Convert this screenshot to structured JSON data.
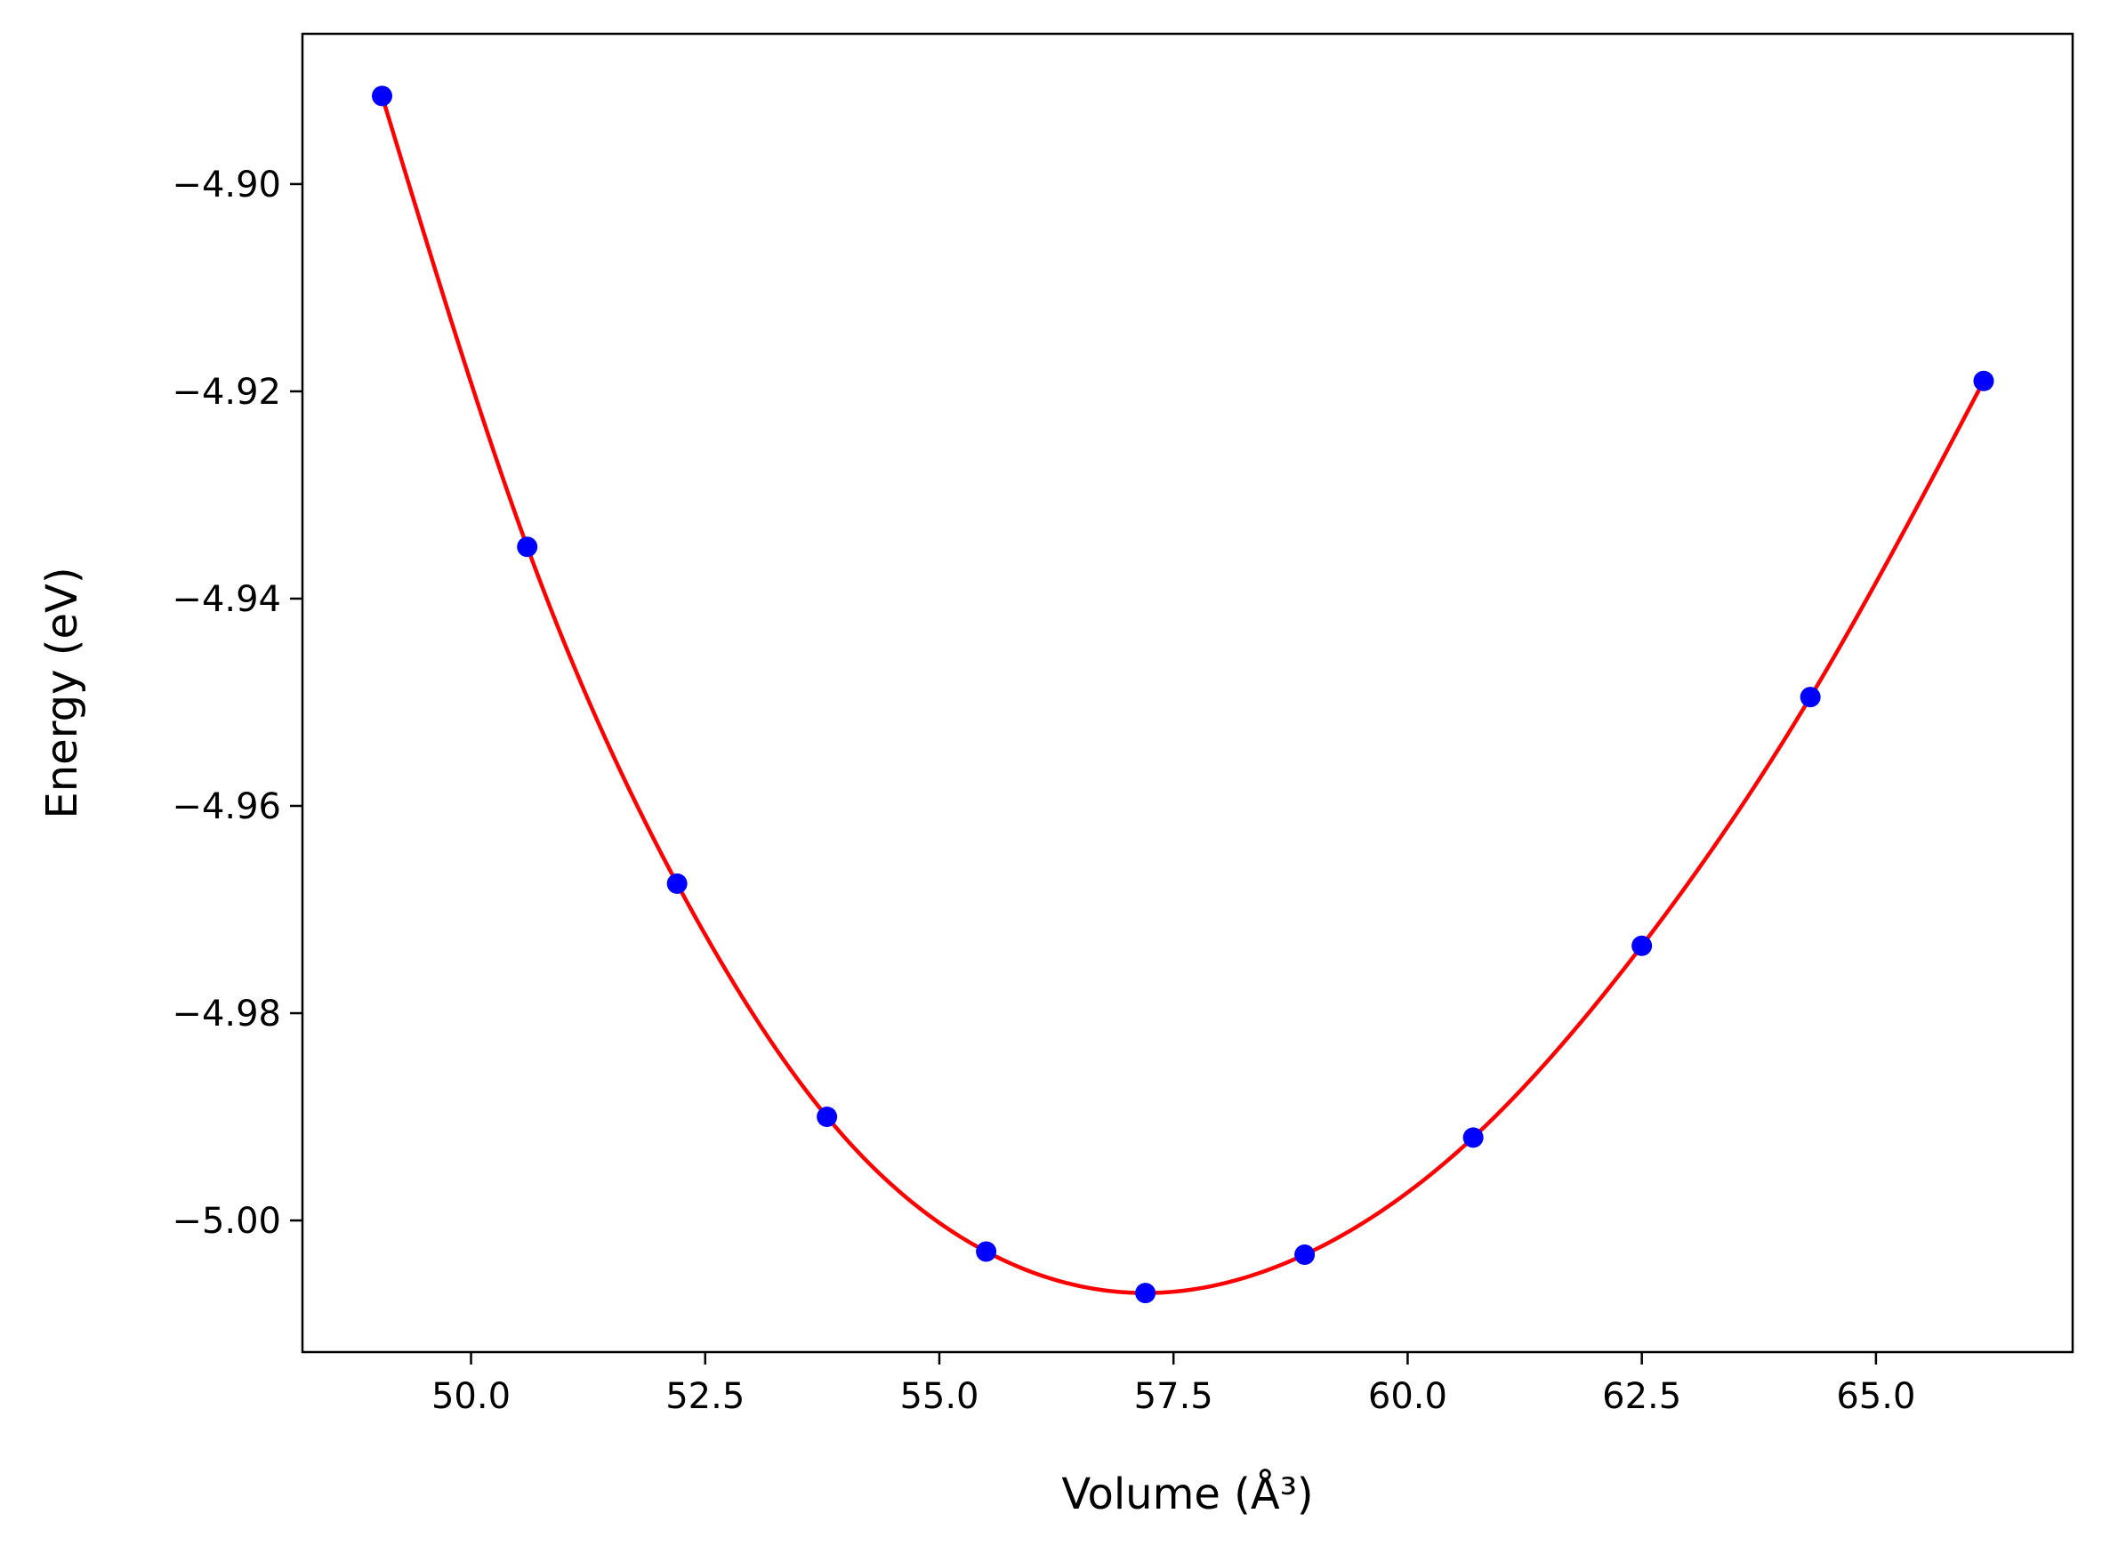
{
  "chart_data": {
    "type": "scatter",
    "title": "",
    "xlabel": "Volume (Å³)",
    "ylabel": "Energy (eV)",
    "xlim": [
      48.2,
      67.1
    ],
    "ylim": [
      -5.0127,
      -4.8855
    ],
    "grid": false,
    "xticks": [
      50.0,
      52.5,
      55.0,
      57.5,
      60.0,
      62.5,
      65.0
    ],
    "yticks": [
      -4.9,
      -4.92,
      -4.94,
      -4.96,
      -4.98,
      -5.0
    ],
    "xtick_labels": [
      "50.0",
      "52.5",
      "55.0",
      "57.5",
      "60.0",
      "62.5",
      "65.0"
    ],
    "ytick_labels": [
      "−4.90",
      "−4.92",
      "−4.94",
      "−4.96",
      "−4.98",
      "−5.00"
    ],
    "series": [
      {
        "kind": "points",
        "color": "#0000ff",
        "x": [
          49.05,
          50.6,
          52.2,
          53.8,
          55.5,
          57.2,
          58.9,
          60.7,
          62.5,
          64.3,
          66.15
        ],
        "y": [
          -4.8915,
          -4.935,
          -4.9675,
          -4.99,
          -5.003,
          -5.007,
          -5.0033,
          -4.992,
          -4.9735,
          -4.9495,
          -4.919
        ]
      },
      {
        "kind": "fit-curve",
        "color": "#ff0000",
        "x": [
          49.05,
          50.6,
          52.2,
          53.8,
          55.5,
          57.2,
          58.9,
          60.7,
          62.5,
          64.3,
          66.15
        ],
        "y": [
          -4.8915,
          -4.935,
          -4.9675,
          -4.99,
          -5.003,
          -5.007,
          -5.0033,
          -4.992,
          -4.9735,
          -4.9495,
          -4.919
        ]
      }
    ]
  }
}
